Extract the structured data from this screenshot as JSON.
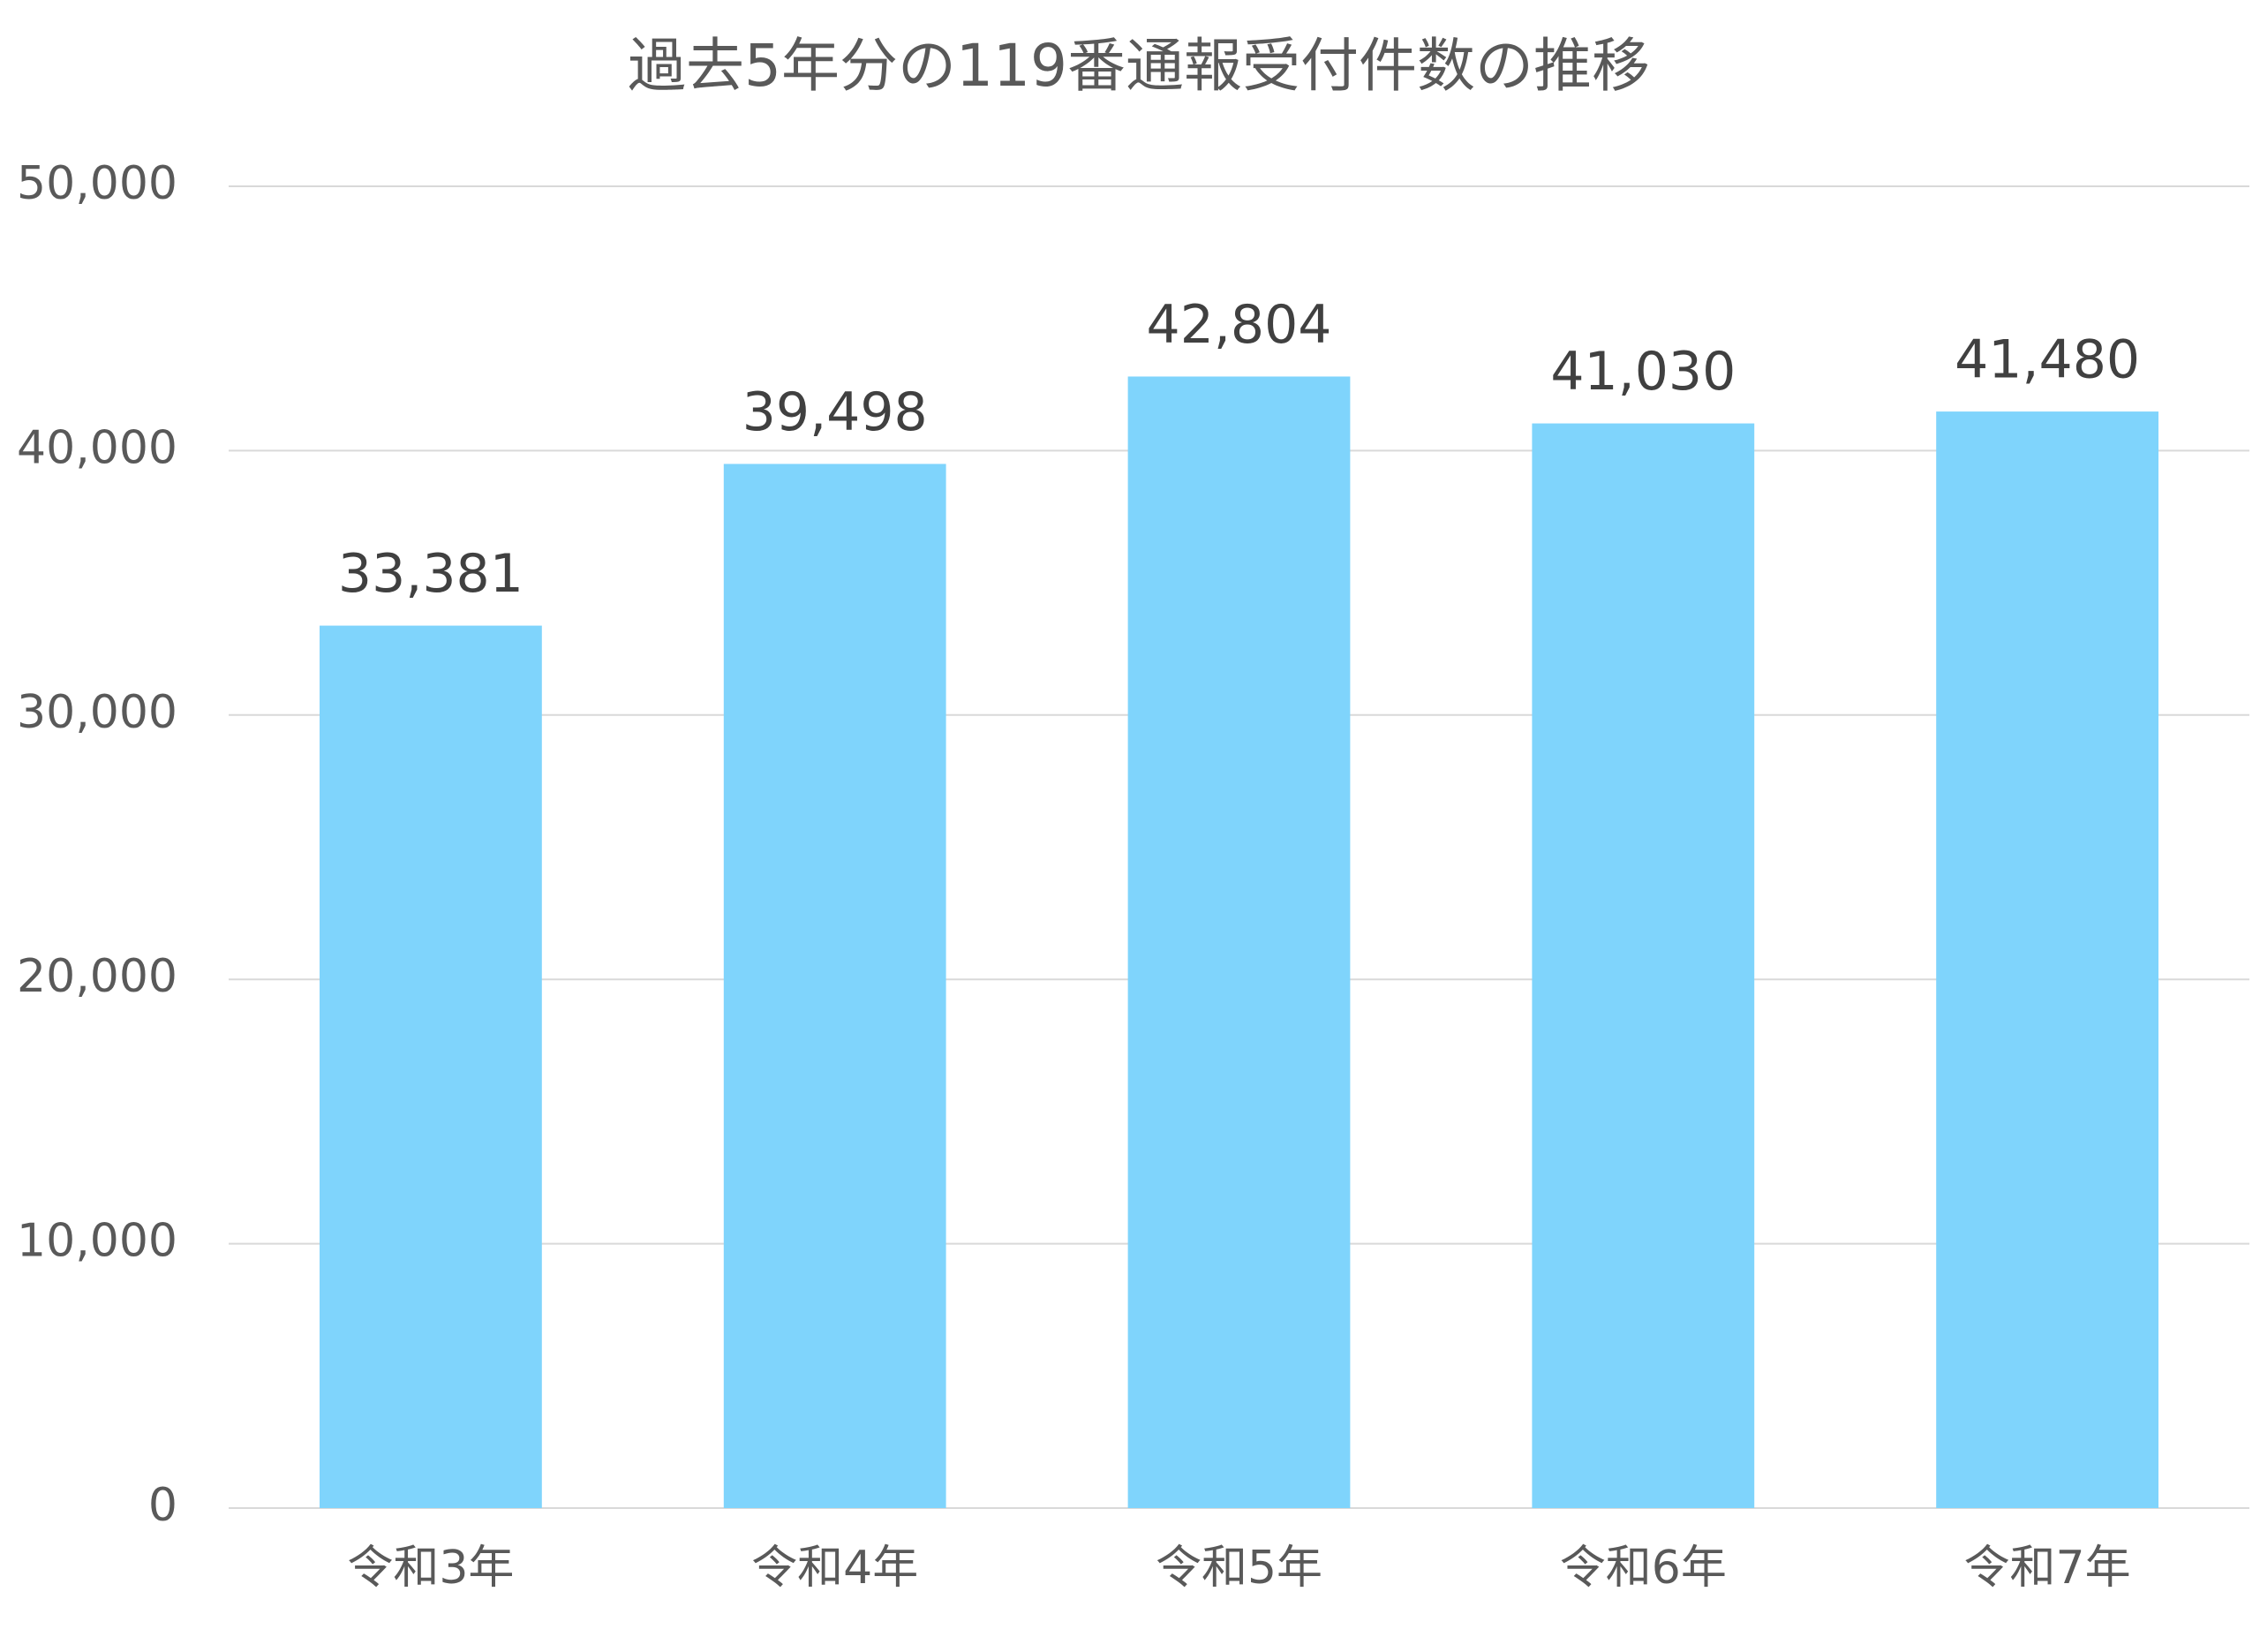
{
  "chart_data": {
    "type": "bar",
    "title": "過去5年分の119番通報受付件数の推移",
    "categories": [
      "令和3年",
      "令和4年",
      "令和5年",
      "令和6年",
      "令和7年"
    ],
    "values": [
      33381,
      39498,
      42804,
      41030,
      41480
    ],
    "value_labels": [
      "33,381",
      "39,498",
      "42,804",
      "41,030",
      "41,480"
    ],
    "color": "#7fd4fc",
    "ylim": [
      0,
      50000
    ],
    "yticks": [
      0,
      {
        "value": 10000,
        "label": "10,000"
      },
      {
        "value": 20000,
        "label": "20,000"
      },
      {
        "value": 30000,
        "label": "30,000"
      },
      {
        "value": 40000,
        "label": "40,000"
      },
      {
        "value": 50000,
        "label": "50,000"
      }
    ],
    "grid": true
  }
}
